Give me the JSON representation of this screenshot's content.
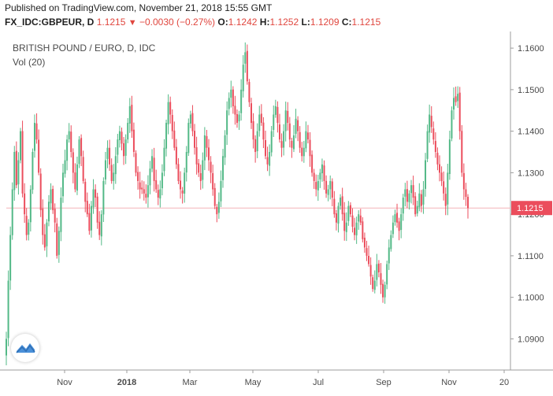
{
  "published_line": "Published on TradingView.com, November 21, 2018 15:55 GMT",
  "quote": {
    "symbol": "FX_IDC:GBPEUR, D",
    "last": "1.1215",
    "direction_icon": "down-triangle",
    "change": "−0.0030 (−0.27%)",
    "open_label": "O:",
    "open": "1.1242",
    "high_label": "H:",
    "high": "1.1252",
    "low_label": "L:",
    "low": "1.1209",
    "close_label": "C:",
    "close": "1.1215"
  },
  "legend": {
    "title": "BRITISH POUND / EURO, D, IDC",
    "volume": "Vol (20)"
  },
  "colors": {
    "up": "#53b987",
    "down": "#eb4d5c",
    "last_price_label": "#eb4d5c",
    "axis": "#9c9c9c"
  },
  "chart_data": {
    "type": "candlestick",
    "y_ticks": [
      "1.0900",
      "1.1000",
      "1.1100",
      "1.1200",
      "1.1300",
      "1.1400",
      "1.1500",
      "1.1600"
    ],
    "ylim": [
      1.0825,
      1.164
    ],
    "x_ticks": [
      "Nov",
      "2018",
      "Mar",
      "May",
      "Jul",
      "Sep",
      "Nov",
      "20"
    ],
    "last_price": 1.1215,
    "last_price_label": "1.1215",
    "grid": false,
    "close_series": [
      1.09,
      1.104,
      1.115,
      1.126,
      1.135,
      1.127,
      1.133,
      1.14,
      1.125,
      1.12,
      1.115,
      1.118,
      1.126,
      1.135,
      1.142,
      1.138,
      1.13,
      1.121,
      1.115,
      1.112,
      1.118,
      1.123,
      1.126,
      1.121,
      1.118,
      1.11,
      1.116,
      1.124,
      1.13,
      1.133,
      1.138,
      1.14,
      1.135,
      1.13,
      1.126,
      1.132,
      1.138,
      1.134,
      1.128,
      1.123,
      1.12,
      1.116,
      1.122,
      1.126,
      1.124,
      1.118,
      1.115,
      1.12,
      1.128,
      1.133,
      1.136,
      1.132,
      1.128,
      1.13,
      1.134,
      1.138,
      1.14,
      1.137,
      1.134,
      1.138,
      1.142,
      1.146,
      1.14,
      1.135,
      1.13,
      1.128,
      1.126,
      1.126,
      1.125,
      1.124,
      1.127,
      1.131,
      1.134,
      1.128,
      1.126,
      1.124,
      1.126,
      1.13,
      1.136,
      1.142,
      1.147,
      1.144,
      1.14,
      1.136,
      1.132,
      1.128,
      1.126,
      1.125,
      1.13,
      1.135,
      1.142,
      1.144,
      1.14,
      1.136,
      1.132,
      1.13,
      1.128,
      1.133,
      1.139,
      1.136,
      1.133,
      1.13,
      1.126,
      1.122,
      1.12,
      1.123,
      1.128,
      1.134,
      1.139,
      1.145,
      1.148,
      1.15,
      1.146,
      1.144,
      1.142,
      1.144,
      1.15,
      1.156,
      1.159,
      1.152,
      1.147,
      1.142,
      1.138,
      1.135,
      1.14,
      1.144,
      1.142,
      1.138,
      1.134,
      1.132,
      1.135,
      1.14,
      1.144,
      1.146,
      1.142,
      1.138,
      1.136,
      1.14,
      1.145,
      1.142,
      1.138,
      1.136,
      1.139,
      1.143,
      1.14,
      1.136,
      1.134,
      1.136,
      1.14,
      1.138,
      1.134,
      1.13,
      1.128,
      1.126,
      1.128,
      1.13,
      1.132,
      1.128,
      1.125,
      1.126,
      1.128,
      1.124,
      1.12,
      1.118,
      1.122,
      1.124,
      1.12,
      1.116,
      1.118,
      1.122,
      1.12,
      1.117,
      1.115,
      1.118,
      1.12,
      1.118,
      1.114,
      1.112,
      1.11,
      1.108,
      1.105,
      1.102,
      1.104,
      1.108,
      1.106,
      1.103,
      1.1,
      1.103,
      1.108,
      1.112,
      1.115,
      1.118,
      1.12,
      1.118,
      1.116,
      1.12,
      1.124,
      1.126,
      1.123,
      1.125,
      1.127,
      1.124,
      1.12,
      1.122,
      1.125,
      1.122,
      1.126,
      1.133,
      1.14,
      1.144,
      1.141,
      1.138,
      1.135,
      1.132,
      1.13,
      1.128,
      1.125,
      1.122,
      1.13,
      1.138,
      1.145,
      1.148,
      1.147,
      1.149,
      1.14,
      1.13,
      1.126,
      1.1242,
      1.1215
    ]
  }
}
